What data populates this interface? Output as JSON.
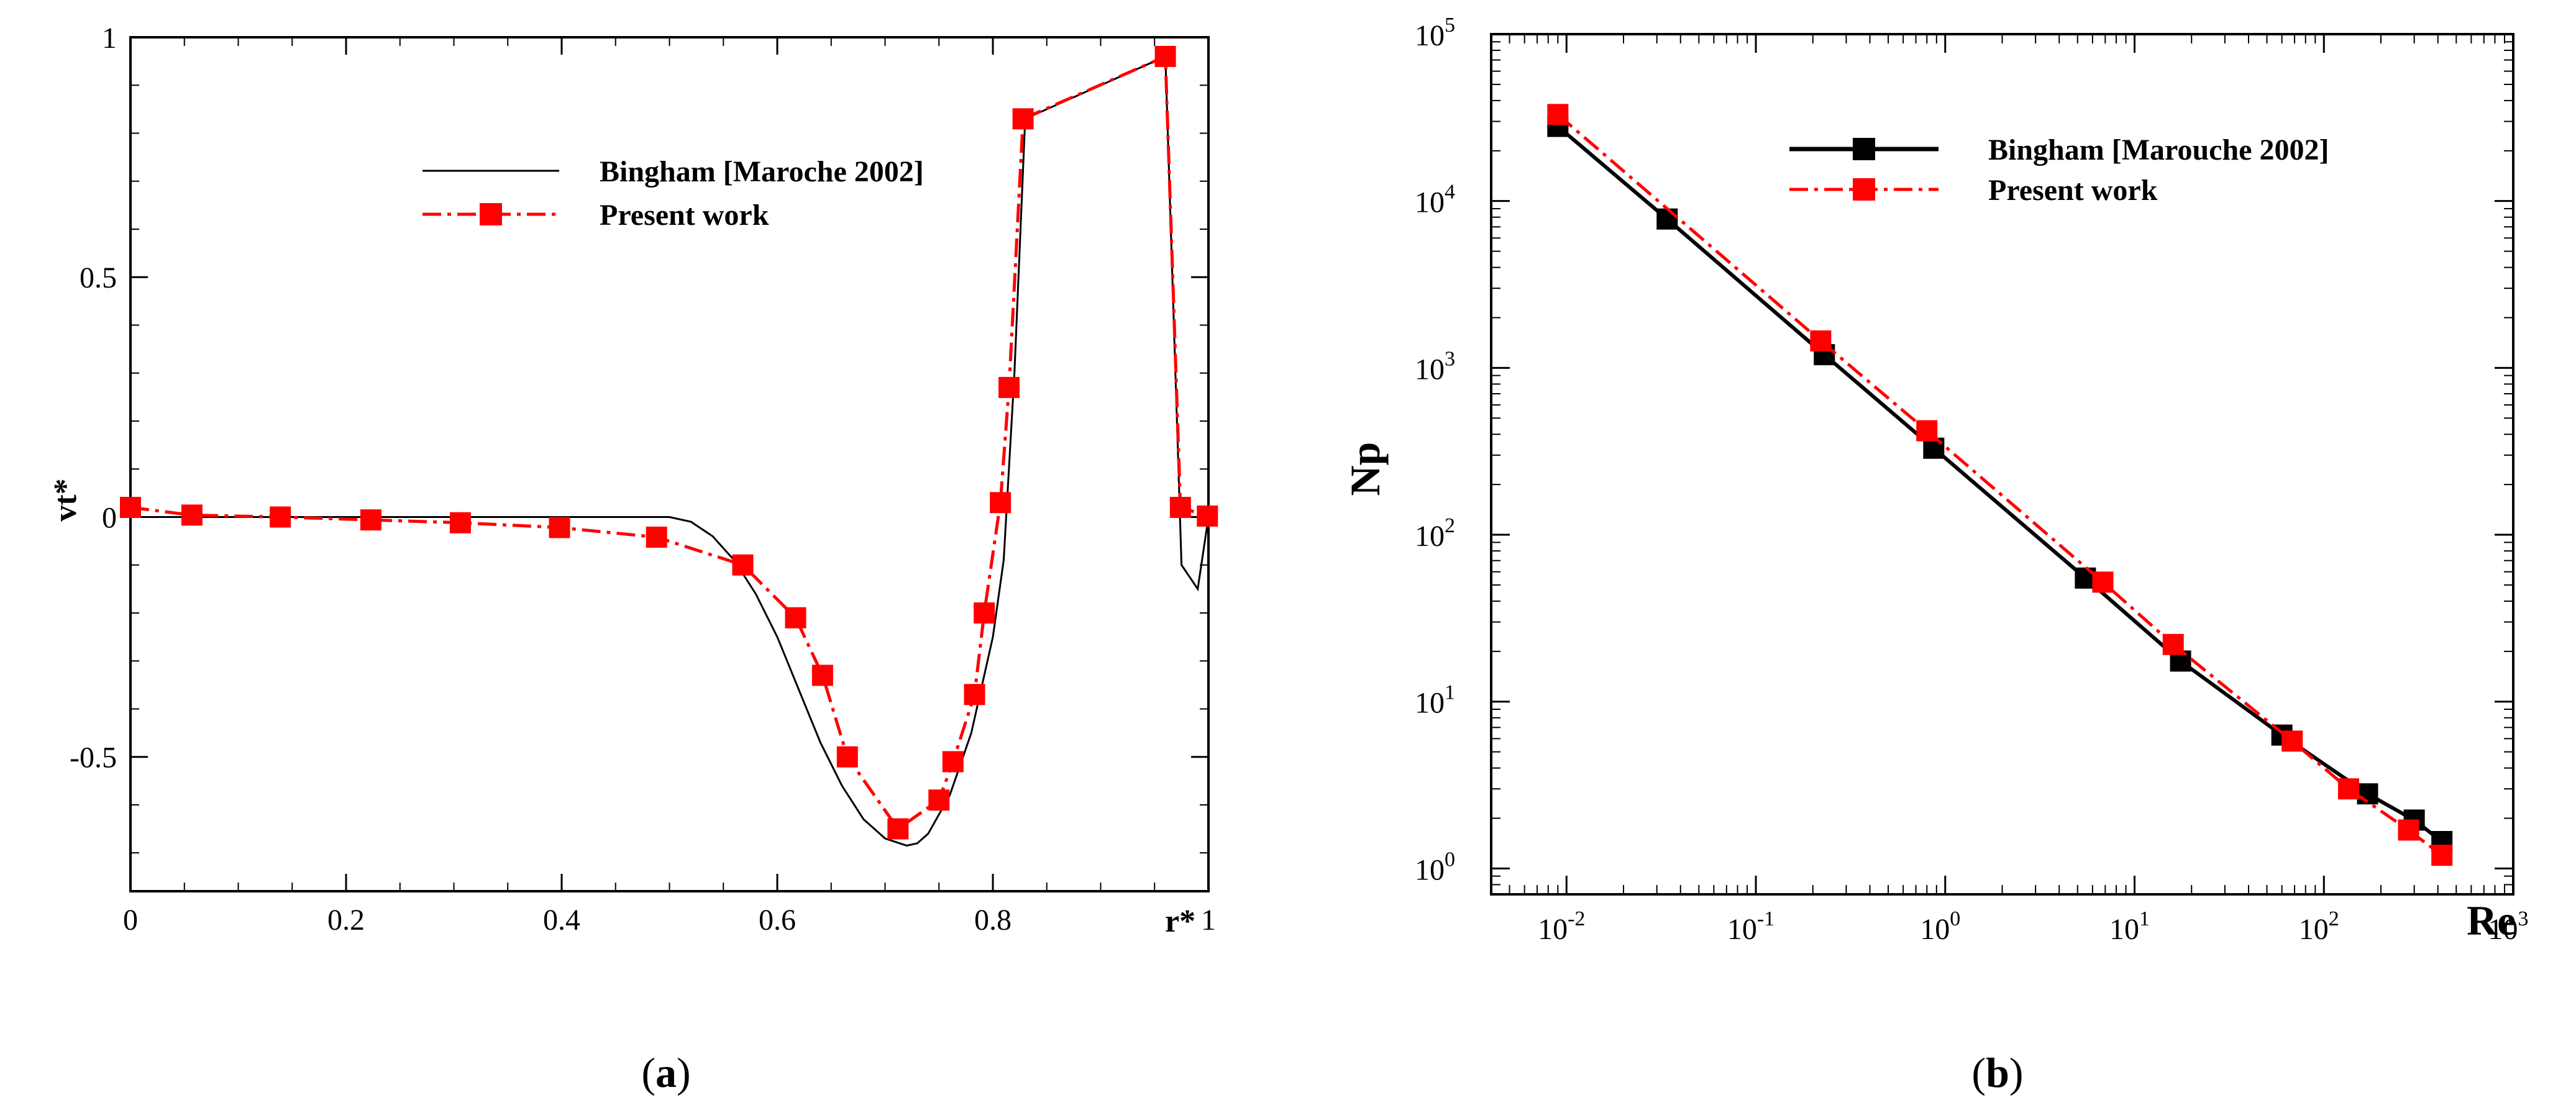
{
  "chart_data": [
    {
      "type": "line",
      "panel_label": "a",
      "xlabel": "r*",
      "ylabel": "vt*",
      "xlim": [
        0,
        1
      ],
      "ylim": [
        -0.78,
        1
      ],
      "x_ticks": [
        0,
        0.2,
        0.4,
        0.6,
        0.8,
        1
      ],
      "x_tick_labels": [
        "0",
        "0.2",
        "0.4",
        "0.6",
        "0.8",
        "1"
      ],
      "y_ticks": [
        -0.5,
        0,
        0.5,
        1
      ],
      "y_tick_labels": [
        "-0.5",
        "0",
        "0.5",
        "1"
      ],
      "legend_position": "upper-center",
      "series": [
        {
          "name": "Bingham [Maroche 2002]",
          "color": "#000000",
          "style": "solid",
          "marker": "none",
          "x": [
            0,
            0.1,
            0.2,
            0.3,
            0.4,
            0.45,
            0.5,
            0.52,
            0.54,
            0.56,
            0.58,
            0.6,
            0.62,
            0.64,
            0.66,
            0.68,
            0.7,
            0.72,
            0.73,
            0.74,
            0.76,
            0.78,
            0.8,
            0.81,
            0.82,
            0.83,
            0.96,
            0.975,
            0.99,
            1.0
          ],
          "y": [
            0,
            0,
            0,
            0,
            0,
            0,
            0,
            -0.01,
            -0.04,
            -0.09,
            -0.16,
            -0.25,
            -0.36,
            -0.47,
            -0.56,
            -0.63,
            -0.67,
            -0.685,
            -0.68,
            -0.66,
            -0.58,
            -0.45,
            -0.25,
            -0.09,
            0.3,
            0.83,
            0.96,
            -0.1,
            -0.15,
            0
          ]
        },
        {
          "name": "Present work",
          "color": "#ff0000",
          "style": "dashdot",
          "marker": "square",
          "x": [
            0,
            0.057,
            0.139,
            0.223,
            0.306,
            0.398,
            0.488,
            0.568,
            0.617,
            0.642,
            0.665,
            0.712,
            0.75,
            0.763,
            0.783,
            0.792,
            0.807,
            0.815,
            0.828,
            0.96,
            0.974,
            0.999
          ],
          "y": [
            0.02,
            0.004,
            0,
            -0.006,
            -0.012,
            -0.022,
            -0.042,
            -0.1,
            -0.21,
            -0.33,
            -0.5,
            -0.65,
            -0.59,
            -0.51,
            -0.37,
            -0.2,
            0.03,
            0.27,
            0.83,
            0.96,
            0.02,
            0.002
          ]
        }
      ]
    },
    {
      "type": "line",
      "panel_label": "b",
      "xlabel": "Re",
      "ylabel": "Np",
      "xscale": "log",
      "yscale": "log",
      "xlim": [
        0.004,
        1000
      ],
      "ylim": [
        0.7,
        100000
      ],
      "x_ticks": [
        0.01,
        0.1,
        1,
        10,
        100,
        1000
      ],
      "x_tick_labels": [
        {
          "base": "10",
          "exp": "-2"
        },
        {
          "base": "10",
          "exp": "-1"
        },
        {
          "base": "10",
          "exp": "0"
        },
        {
          "base": "10",
          "exp": "1"
        },
        {
          "base": "10",
          "exp": "2"
        },
        {
          "base": "10",
          "exp": "3"
        }
      ],
      "y_ticks": [
        1,
        10,
        100,
        1000,
        10000,
        100000
      ],
      "y_tick_labels": [
        {
          "base": "10",
          "exp": "0"
        },
        {
          "base": "10",
          "exp": "1"
        },
        {
          "base": "10",
          "exp": "2"
        },
        {
          "base": "10",
          "exp": "3"
        },
        {
          "base": "10",
          "exp": "4"
        },
        {
          "base": "10",
          "exp": "5"
        }
      ],
      "legend_position": "upper-right",
      "series": [
        {
          "name": "Bingham [Marouche 2002]",
          "color": "#000000",
          "style": "solid",
          "marker": "square",
          "x": [
            0.009,
            0.034,
            0.23,
            0.87,
            5.5,
            17.5,
            60,
            170,
            300,
            420
          ],
          "y": [
            28000,
            7800,
            1200,
            330,
            55,
            17.5,
            6.3,
            2.8,
            1.95,
            1.45
          ]
        },
        {
          "name": "Present work",
          "color": "#ff0000",
          "style": "dashdot",
          "marker": "square",
          "x": [
            0.009,
            0.22,
            0.8,
            6.8,
            16,
            68,
            135,
            280,
            420
          ],
          "y": [
            33000,
            1450,
            420,
            52,
            22,
            5.8,
            3.0,
            1.7,
            1.2
          ]
        }
      ]
    }
  ]
}
